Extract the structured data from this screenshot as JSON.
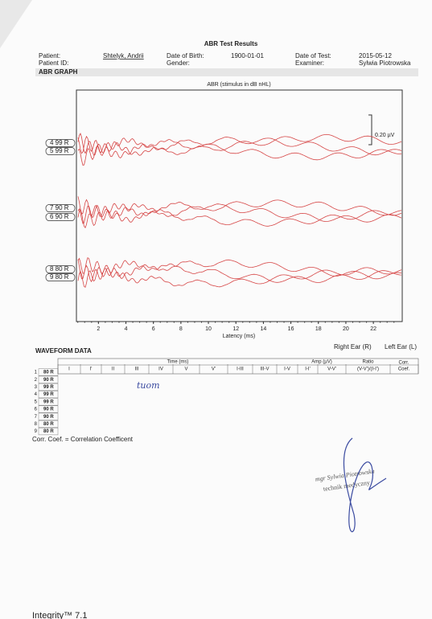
{
  "header": {
    "title": "ABR Test Results",
    "patient_label": "Patient:",
    "patient": "Shtelyk, Andrii",
    "patient_id_label": "Patient ID:",
    "dob_label": "Date of Birth:",
    "dob": "1900-01-01",
    "gender_label": "Gender:",
    "date_label": "Date of Test:",
    "date": "2015-05-12",
    "examiner_label": "Examiner:",
    "examiner": "Sylwia Piotrowska"
  },
  "graph": {
    "section": "ABR GRAPH",
    "title": "ABR (stimulus in dB nHL)",
    "scale_label": "0.20 µV",
    "x_label": "Latency (ms)",
    "xlim": [
      0.4,
      24.1
    ],
    "xticks": [
      2,
      4,
      6,
      8,
      10,
      12,
      14,
      16,
      18,
      20,
      22
    ],
    "trace_labels": [
      "4 99 R",
      "5 99 R",
      "7 90 R",
      "6 90 R",
      "8 80 R",
      "9 80 R"
    ]
  },
  "legend": {
    "right": "Right Ear (R)",
    "left": "Left Ear (L)"
  },
  "waveform_data": {
    "section": "WAVEFORM DATA",
    "group_headers": [
      "Time (ms)",
      "Amp (µV)",
      "Ratio"
    ],
    "columns": [
      "I",
      "I'",
      "II",
      "III",
      "IV",
      "V",
      "V'",
      "I-III",
      "III-V",
      "I-V",
      "I-I'",
      "V-V'",
      "(V-V')/(I-I')"
    ],
    "corr_header": [
      "Corr.",
      "Coef."
    ],
    "rows": [
      {
        "number": 1,
        "label": "80 R"
      },
      {
        "number": 2,
        "label": "90 R"
      },
      {
        "number": 3,
        "label": "99 R"
      },
      {
        "number": 4,
        "label": "99 R"
      },
      {
        "number": 5,
        "label": "99 R"
      },
      {
        "number": 6,
        "label": "90 R"
      },
      {
        "number": 7,
        "label": "90 R"
      },
      {
        "number": 8,
        "label": "80 R"
      },
      {
        "number": 9,
        "label": "80 R"
      }
    ],
    "handwriting": "tuom",
    "footnote": "Corr. Coef. = Correlation Coefficent"
  },
  "signature": {
    "line1": "mgr Sylwia Piotrowska",
    "line2": "technik medyczny"
  },
  "footer": "Integrity™ 7.1"
}
